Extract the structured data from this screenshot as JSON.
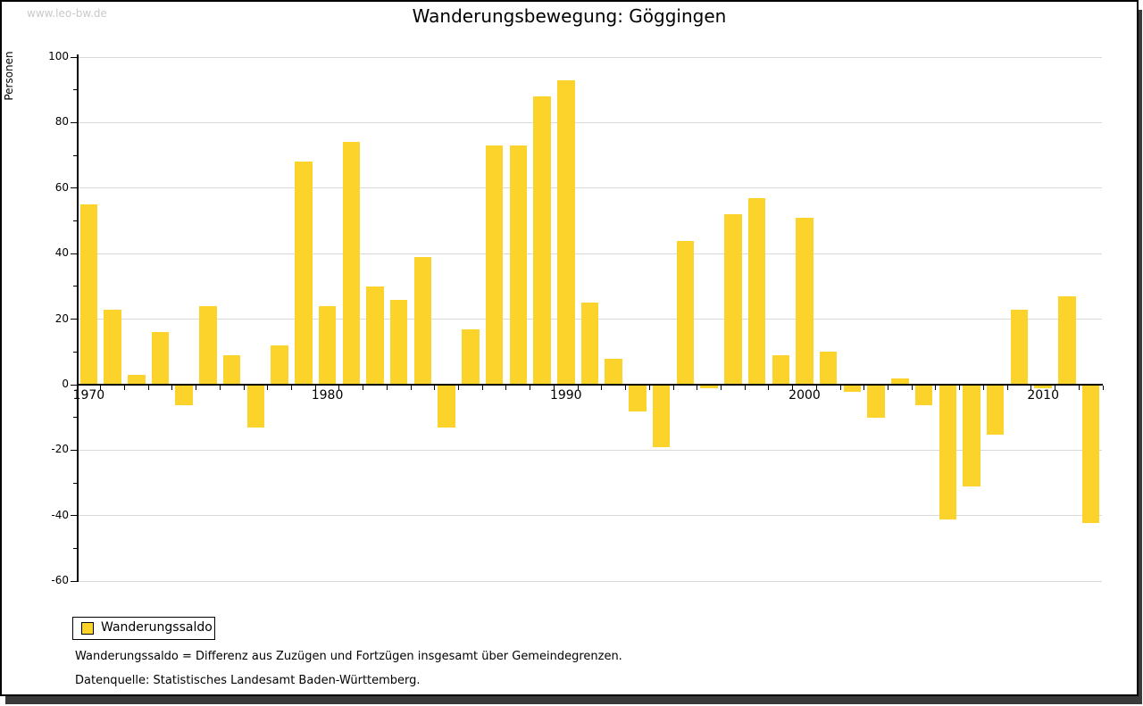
{
  "watermark": "www.leo-bw.de",
  "legend": {
    "label": "Wanderungssaldo",
    "swatch_color": "#fcd32b"
  },
  "footer": {
    "definition": "Wanderungssaldo = Differenz aus Zuzügen und Fortzügen insgesamt über Gemeindegrenzen.",
    "source": "Datenquelle: Statistisches Landesamt Baden-Württemberg."
  },
  "chart_data": {
    "type": "bar",
    "title": "Wanderungsbewegung: Göggingen",
    "ylabel": "Personen",
    "xlabel": "",
    "categories": [
      1970,
      1971,
      1972,
      1973,
      1974,
      1975,
      1976,
      1977,
      1978,
      1979,
      1980,
      1981,
      1982,
      1983,
      1984,
      1985,
      1986,
      1987,
      1988,
      1989,
      1990,
      1991,
      1992,
      1993,
      1994,
      1995,
      1996,
      1997,
      1998,
      1999,
      2000,
      2001,
      2002,
      2003,
      2004,
      2005,
      2006,
      2007,
      2008,
      2009,
      2010,
      2011,
      2012
    ],
    "series": [
      {
        "name": "Wanderungssaldo",
        "color": "#fcd32b",
        "values": [
          55,
          23,
          3,
          16,
          -6,
          24,
          9,
          -13,
          12,
          68,
          24,
          74,
          30,
          26,
          39,
          -13,
          17,
          73,
          73,
          88,
          93,
          25,
          8,
          -8,
          -19,
          44,
          -1,
          52,
          57,
          9,
          51,
          10,
          -2,
          -10,
          2,
          -6,
          -41,
          -31,
          -15,
          23,
          -1,
          27,
          -42
        ]
      }
    ],
    "ylim": [
      -60,
      100
    ],
    "ytick_step": 20,
    "ytick_minor_step": 10,
    "xtick_labeled_years": [
      1970,
      1980,
      1990,
      2000,
      2010
    ],
    "grid": "horizontal-major",
    "gridline_color": "#d9d9d9",
    "legend_position": "bottom-left"
  }
}
